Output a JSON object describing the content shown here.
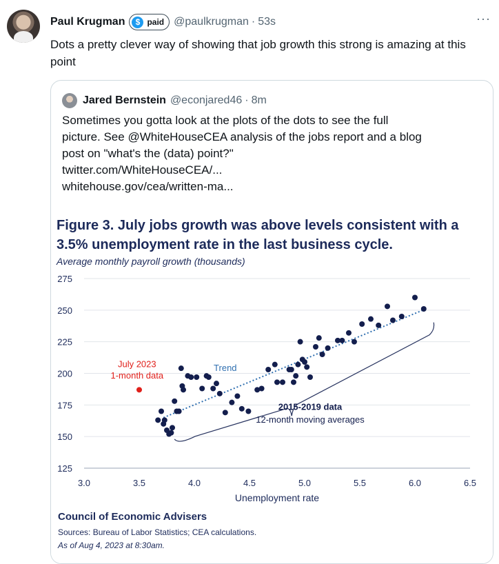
{
  "tweet": {
    "author_name": "Paul Krugman",
    "badge_label": "paid",
    "badge_icon": "dollar-sign",
    "handle": "@paulkrugman",
    "separator": "·",
    "time": "53s",
    "more_icon": "···",
    "text": "Dots a pretty clever way of showing that job growth this strong is amazing at this point"
  },
  "quote": {
    "author_name": "Jared Bernstein",
    "handle": "@econjared46",
    "separator": "·",
    "time": "8m",
    "lines": [
      "Sometimes you gotta look at the plots of the dots to see the full",
      "picture. See @WhiteHouseCEA analysis of the jobs report and a blog",
      "post on \"what's the (data) point?\"",
      "twitter.com/WhiteHouseCEA/...",
      "whitehouse.gov/cea/written-ma..."
    ]
  },
  "figure": {
    "title_line1": "Figure 3. July jobs growth was above levels consistent with a",
    "title_line2": "3.5% unemployment rate in the last business cycle.",
    "subtitle": "Average monthly payroll growth (thousands)",
    "footer_org": "Council of Economic Advisers",
    "footer_sources": "Sources: Bureau of Labor Statistics; CEA calculations.",
    "footer_date": "As of Aug 4, 2023 at 8:30am."
  },
  "chart_data": {
    "type": "scatter",
    "title": "Figure 3. July jobs growth was above levels consistent with a 3.5% unemployment rate in the last business cycle.",
    "ylabel": "Average monthly payroll growth (thousands)",
    "xlabel": "Unemployment rate",
    "xlim": [
      3.0,
      6.5
    ],
    "ylim": [
      125,
      275
    ],
    "x_ticks": [
      "3.0",
      "3.5",
      "4.0",
      "4.5",
      "5.0",
      "5.5",
      "6.0",
      "6.5"
    ],
    "y_ticks": [
      "125",
      "150",
      "175",
      "200",
      "225",
      "250",
      "275"
    ],
    "grid": "horizontal",
    "series": [
      {
        "name": "2015-2019 data",
        "label_line1": "2015-2019 data",
        "label_line2": "12-month moving averages",
        "color": "#131e4d",
        "points": [
          [
            3.67,
            163
          ],
          [
            3.7,
            170
          ],
          [
            3.72,
            160
          ],
          [
            3.73,
            163
          ],
          [
            3.75,
            155
          ],
          [
            3.77,
            152
          ],
          [
            3.79,
            153
          ],
          [
            3.8,
            157
          ],
          [
            3.82,
            178
          ],
          [
            3.84,
            170
          ],
          [
            3.86,
            170
          ],
          [
            3.88,
            204
          ],
          [
            3.89,
            190
          ],
          [
            3.9,
            187
          ],
          [
            3.94,
            198
          ],
          [
            3.97,
            197
          ],
          [
            4.02,
            197
          ],
          [
            4.07,
            188
          ],
          [
            4.11,
            198
          ],
          [
            4.13,
            197
          ],
          [
            4.17,
            188
          ],
          [
            4.2,
            192
          ],
          [
            4.23,
            184
          ],
          [
            4.28,
            169
          ],
          [
            4.34,
            177
          ],
          [
            4.39,
            182
          ],
          [
            4.43,
            172
          ],
          [
            4.49,
            170
          ],
          [
            4.57,
            187
          ],
          [
            4.61,
            188
          ],
          [
            4.67,
            203
          ],
          [
            4.73,
            207
          ],
          [
            4.75,
            193
          ],
          [
            4.8,
            193
          ],
          [
            4.86,
            203
          ],
          [
            4.88,
            203
          ],
          [
            4.9,
            193
          ],
          [
            4.92,
            198
          ],
          [
            4.94,
            207
          ],
          [
            4.96,
            225
          ],
          [
            4.98,
            211
          ],
          [
            5.0,
            209
          ],
          [
            5.02,
            205
          ],
          [
            5.05,
            197
          ],
          [
            5.1,
            221
          ],
          [
            5.13,
            228
          ],
          [
            5.16,
            215
          ],
          [
            5.21,
            220
          ],
          [
            5.3,
            226
          ],
          [
            5.34,
            226
          ],
          [
            5.4,
            232
          ],
          [
            5.45,
            225
          ],
          [
            5.52,
            239
          ],
          [
            5.6,
            243
          ],
          [
            5.67,
            238
          ],
          [
            5.75,
            253
          ],
          [
            5.8,
            242
          ],
          [
            5.88,
            245
          ],
          [
            6.0,
            260
          ],
          [
            6.08,
            251
          ]
        ]
      },
      {
        "name": "July 2023",
        "label_line1": "July 2023",
        "label_line2": "1-month data",
        "color": "#e0201b",
        "points": [
          [
            3.5,
            187
          ]
        ]
      }
    ],
    "trend": {
      "label": "Trend",
      "from": [
        3.72,
        165
      ],
      "to": [
        6.1,
        251
      ],
      "color": "#2f6fb0"
    }
  }
}
